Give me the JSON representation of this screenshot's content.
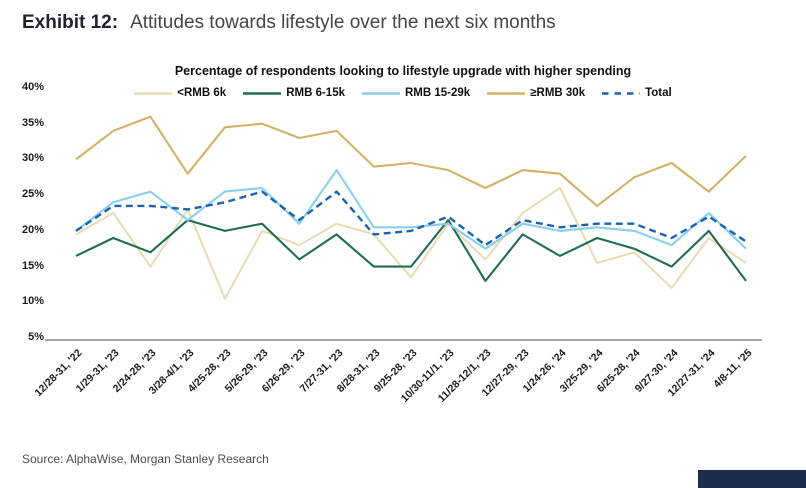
{
  "exhibit": {
    "label": "Exhibit 12:",
    "title": "Attitudes towards lifestyle over the next six months"
  },
  "source": "Source: AlphaWise, Morgan Stanley Research",
  "chart_data": {
    "type": "line",
    "title": "Percentage of respondents looking to lifestyle upgrade with higher spending",
    "xlabel": "",
    "ylabel": "",
    "ylim": [
      5,
      40
    ],
    "ytick_values": [
      40,
      35,
      30,
      25,
      20,
      15,
      10,
      5
    ],
    "grid": false,
    "legend_position": "top",
    "x_label_rotation": -45,
    "categories": [
      "12/28-31, '22",
      "1/29-31, '23",
      "2/24-28, '23",
      "3/28-4/1, '23",
      "4/25-28, '23",
      "5/26-29, '23",
      "6/26-29, '23",
      "7/27-31, '23",
      "8/28-31, '23",
      "9/25-28, '23",
      "10/30-11/1, '23",
      "11/28-12/1, '23",
      "12/27-29, '23",
      "1/24-26, '24",
      "3/25-29, '24",
      "6/25-28, '24",
      "9/27-30, '24",
      "12/27-31, '24",
      "4/8-11, '25"
    ],
    "series": [
      {
        "name": "<RMB 6k",
        "color": "#e9dcb4",
        "style": "solid",
        "values": [
          19.5,
          22.5,
          15,
          23,
          10.5,
          20,
          18,
          21,
          19.5,
          13.5,
          21,
          16,
          22.5,
          26,
          15.5,
          17,
          12,
          19,
          15.5
        ]
      },
      {
        "name": "RMB 6-15k",
        "color": "#206c52",
        "style": "solid",
        "values": [
          16.5,
          19,
          17,
          21.5,
          20,
          21,
          16,
          19.5,
          15,
          15,
          21.5,
          13,
          19.5,
          16.5,
          19,
          17.5,
          15,
          20,
          13
        ]
      },
      {
        "name": "RMB 15-29k",
        "color": "#8aceef",
        "style": "solid",
        "values": [
          20,
          24,
          25.5,
          21.5,
          25.5,
          26,
          21,
          28.5,
          20.5,
          20.5,
          21,
          17.5,
          21,
          20,
          20.5,
          20,
          18,
          22.5,
          17.5
        ]
      },
      {
        "name": "≥RMB 30k",
        "color": "#d2b266",
        "style": "solid",
        "values": [
          30,
          34,
          36,
          28,
          34.5,
          35,
          33,
          34,
          29,
          29.5,
          28.5,
          26,
          28.5,
          28,
          23.5,
          27.5,
          29.5,
          25.5,
          30.5
        ]
      },
      {
        "name": "Total",
        "color": "#1a64ae",
        "style": "dashed",
        "values": [
          20,
          23.5,
          23.5,
          23,
          24,
          25.5,
          21.5,
          25.5,
          19.5,
          20,
          22,
          18,
          21.5,
          20.5,
          21,
          21,
          19,
          22,
          18.5
        ]
      }
    ]
  }
}
